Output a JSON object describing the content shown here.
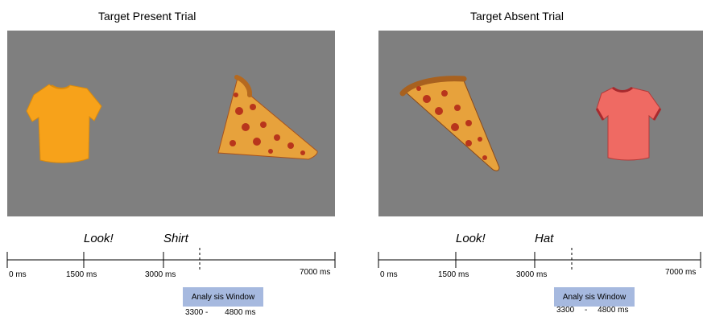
{
  "present": {
    "title": "Target Present Trial",
    "left_item": "shirt-orange",
    "right_item": "pizza-slice",
    "cue_word": "Look!",
    "target_word": "Shirt",
    "ticks": [
      "0 ms",
      "1500 ms",
      "3000 ms",
      "7000 ms"
    ],
    "analysis": {
      "label": "Analy sis Window",
      "start": "3300 -",
      "end": "4800 ms"
    }
  },
  "absent": {
    "title": "Target Absent Trial",
    "left_item": "pizza-slice",
    "right_item": "shirt-red",
    "cue_word": "Look!",
    "target_word": "Hat",
    "ticks": [
      "0 ms",
      "1500 ms",
      "3000 ms",
      "7000 ms"
    ],
    "analysis": {
      "label": "Analy sis Window",
      "start": "3300",
      "dash": "-",
      "end": "4800 ms"
    }
  },
  "colors": {
    "stage": "#7f7f7f",
    "analysis_box": "#a6b9df",
    "orange_shirt": "#f7a21a",
    "red_shirt": "#ef6a63",
    "pizza_cheese": "#e7a23c"
  }
}
